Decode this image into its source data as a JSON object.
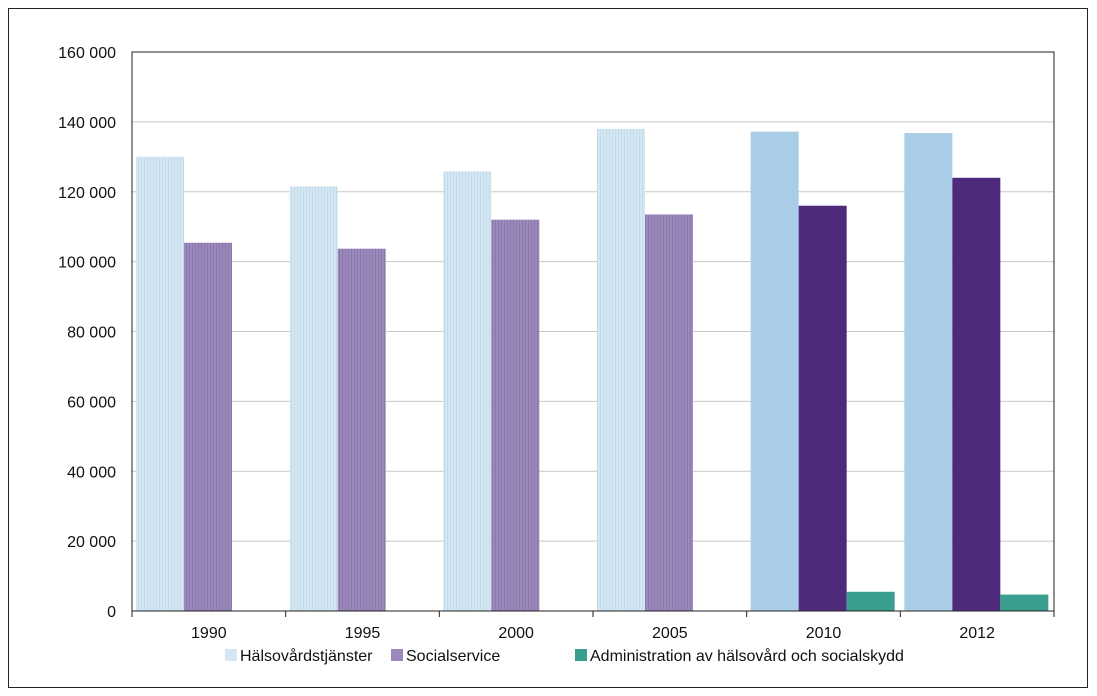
{
  "chart_data": {
    "type": "bar",
    "categories": [
      "1990",
      "1995",
      "2000",
      "2005",
      "2010",
      "2012"
    ],
    "series": [
      {
        "name": "Hälsovårdstjänster",
        "values": [
          130000,
          121500,
          125800,
          138000,
          137200,
          136800
        ]
      },
      {
        "name": "Socialservice",
        "values": [
          105400,
          103700,
          112000,
          113500,
          116000,
          124000
        ]
      },
      {
        "name": "Administration av hälsovård och socialskydd",
        "values": [
          null,
          null,
          null,
          null,
          5500,
          4700
        ]
      }
    ],
    "ylim": [
      0,
      160000
    ],
    "yticks": [
      0,
      20000,
      40000,
      60000,
      80000,
      100000,
      120000,
      140000,
      160000
    ],
    "ytick_labels": [
      "0",
      "20 000",
      "40 000",
      "60 000",
      "80 000",
      "100 000",
      "120 000",
      "140 000",
      "160 000"
    ],
    "grid": true,
    "legend_position": "bottom",
    "colors": {
      "Hälsovårdstjänster_early": "#d3e6f2",
      "Hälsovårdstjänster_late": "#a9cde6",
      "Socialservice_early": "#9b89bb",
      "Socialservice_late": "#4e2a7d",
      "Administration av hälsovård och socialskydd": "#3a9e8e"
    },
    "title": "",
    "xlabel": "",
    "ylabel": ""
  }
}
